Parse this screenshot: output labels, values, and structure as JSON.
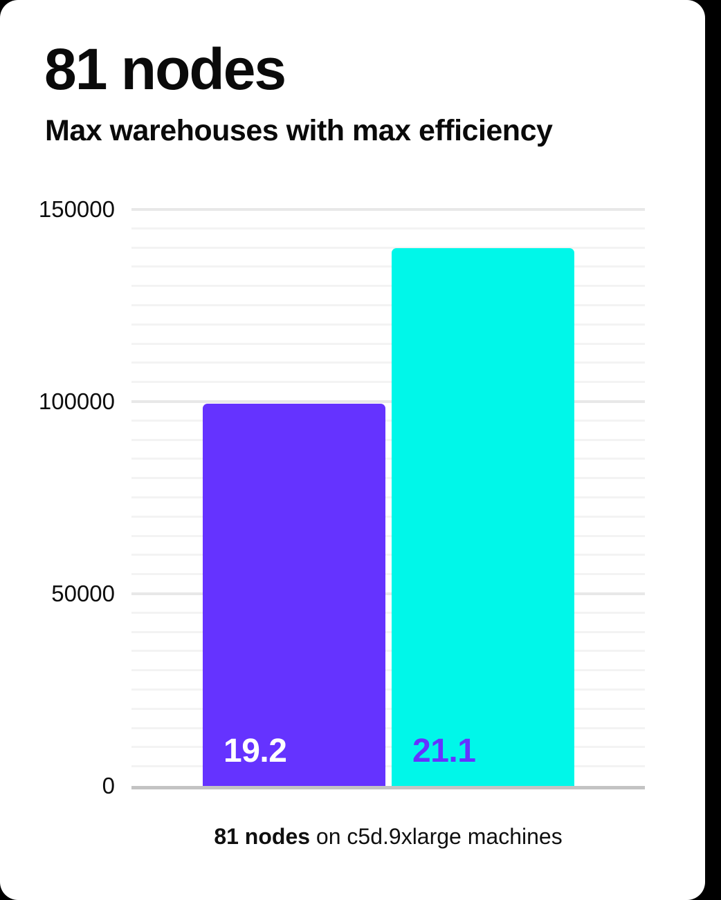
{
  "header": {
    "title": "81 nodes",
    "subtitle": "Max warehouses with max efficiency"
  },
  "caption": {
    "bold": "81 nodes",
    "rest": " on c5d.9xlarge machines"
  },
  "colors": {
    "page_background": "#000000",
    "card_background": "#ffffff",
    "text": "#0a0a0a",
    "bar_purple": "#6533ff",
    "bar_cyan": "#00f7e9",
    "bar_label_on_purple": "#ffffff",
    "bar_label_on_cyan": "#6533ff",
    "gridline_minor": "#f3f3f3",
    "gridline_major": "#e8e8e8",
    "axis_baseline": "#c3c3c3"
  },
  "chart_data": {
    "type": "bar",
    "title": "81 nodes",
    "subtitle": "Max warehouses with max efficiency",
    "categories": [
      "19.2",
      "21.1"
    ],
    "values": [
      99500,
      140000
    ],
    "bar_value_labels": [
      "19.2",
      "21.1"
    ],
    "bar_colors": [
      "#6533ff",
      "#00f7e9"
    ],
    "bar_label_colors": [
      "#ffffff",
      "#6533ff"
    ],
    "xlabel": "",
    "ylabel": "",
    "ylim": [
      0,
      150000
    ],
    "yticks": [
      0,
      50000,
      100000,
      150000
    ],
    "ytick_labels": [
      "0",
      "50000",
      "100000",
      "150000"
    ],
    "minor_gridline_step": 5000,
    "grid": "horizontal",
    "legend": "none",
    "caption": "81 nodes on c5d.9xlarge machines"
  }
}
